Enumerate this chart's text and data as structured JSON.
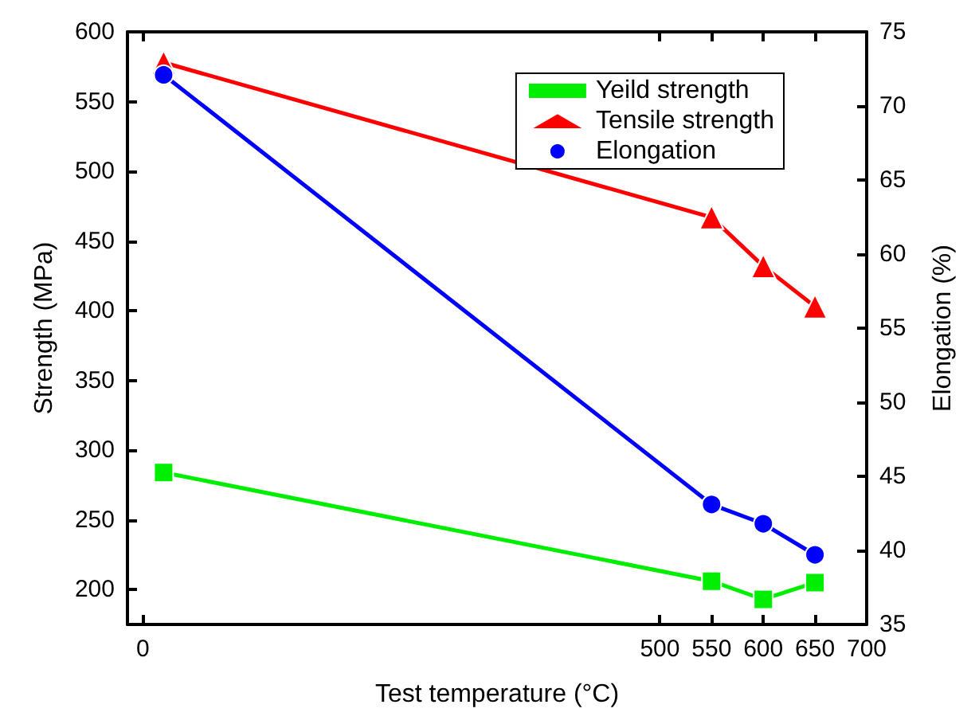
{
  "chart_data": {
    "type": "line",
    "xlabel": "Test temperature (°C)",
    "ylabel": "Strength (MPa)",
    "y2label": "Elongation (%)",
    "x": [
      20,
      550,
      600,
      650
    ],
    "xlim": [
      -15,
      700
    ],
    "xticks": [
      0,
      500,
      550,
      600,
      650,
      700
    ],
    "ylim": [
      175,
      600
    ],
    "yticks": [
      200,
      250,
      300,
      350,
      400,
      450,
      500,
      550,
      600
    ],
    "y2lim": [
      35,
      75
    ],
    "y2ticks": [
      35,
      40,
      45,
      50,
      55,
      60,
      65,
      70,
      75
    ],
    "series": [
      {
        "name": "Yeild strength",
        "color": "#00ee00",
        "marker": "square",
        "values": [
          284,
          206,
          193,
          205
        ]
      },
      {
        "name": "Tensile strength",
        "color": "#ff0000",
        "marker": "triangle",
        "values": [
          578,
          467,
          432,
          403
        ]
      },
      {
        "name": "Elongation",
        "color": "#0000ff",
        "marker": "circle",
        "axis": "y2",
        "values": [
          72.1,
          43.1,
          41.8,
          39.7
        ]
      }
    ],
    "legend": "top right",
    "grid": false,
    "line_style": "solid"
  }
}
